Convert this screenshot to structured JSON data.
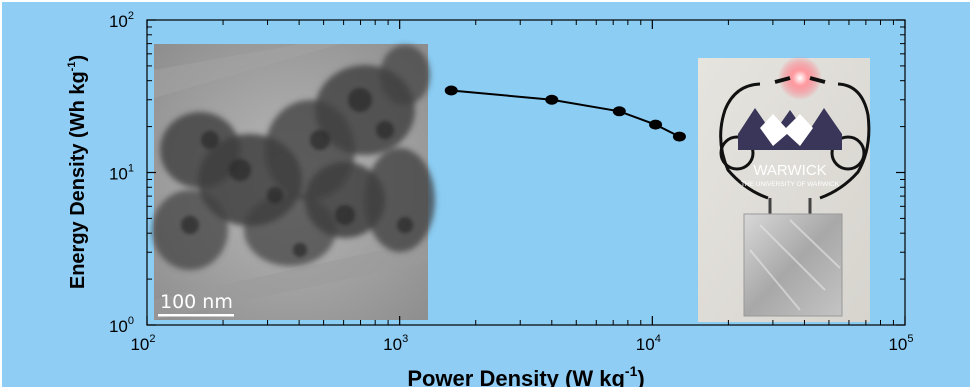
{
  "chart_data": {
    "type": "line",
    "title": "",
    "xlabel": "Power Density (W kg-1)",
    "ylabel": "Energy Density (Wh kg-1)",
    "x_scale": "log",
    "y_scale": "log",
    "xlim": [
      100,
      100000
    ],
    "ylim": [
      1,
      100
    ],
    "x_ticks": [
      {
        "base": "10",
        "exp": "2",
        "value": 100
      },
      {
        "base": "10",
        "exp": "3",
        "value": 1000
      },
      {
        "base": "10",
        "exp": "4",
        "value": 10000
      },
      {
        "base": "10",
        "exp": "5",
        "value": 100000
      }
    ],
    "y_ticks": [
      {
        "base": "10",
        "exp": "0",
        "value": 1
      },
      {
        "base": "10",
        "exp": "1",
        "value": 10
      },
      {
        "base": "10",
        "exp": "2",
        "value": 100
      }
    ],
    "grid": false,
    "series": [
      {
        "color": "#000000",
        "points": [
          {
            "x": 1600,
            "y": 34.5
          },
          {
            "x": 4000,
            "y": 30.0
          },
          {
            "x": 7400,
            "y": 25.2
          },
          {
            "x": 10300,
            "y": 20.6
          },
          {
            "x": 12800,
            "y": 17.2
          }
        ]
      }
    ]
  },
  "labels": {
    "xlabel_main": "Power Density (W kg",
    "xlabel_exp": "-1",
    "xlabel_close": ")",
    "ylabel_main": "Energy Density (Wh kg",
    "ylabel_exp": "-1",
    "ylabel_close": ")"
  },
  "inset_tem": {
    "scale_bar_label": "100 nm"
  },
  "inset_photo": {
    "logo_word": "WARWICK",
    "logo_subtitle": "THE UNIVERSITY OF WARWICK"
  },
  "colors": {
    "plot_background": "#8ccdf3",
    "frame_background": "#8fcdf5"
  }
}
